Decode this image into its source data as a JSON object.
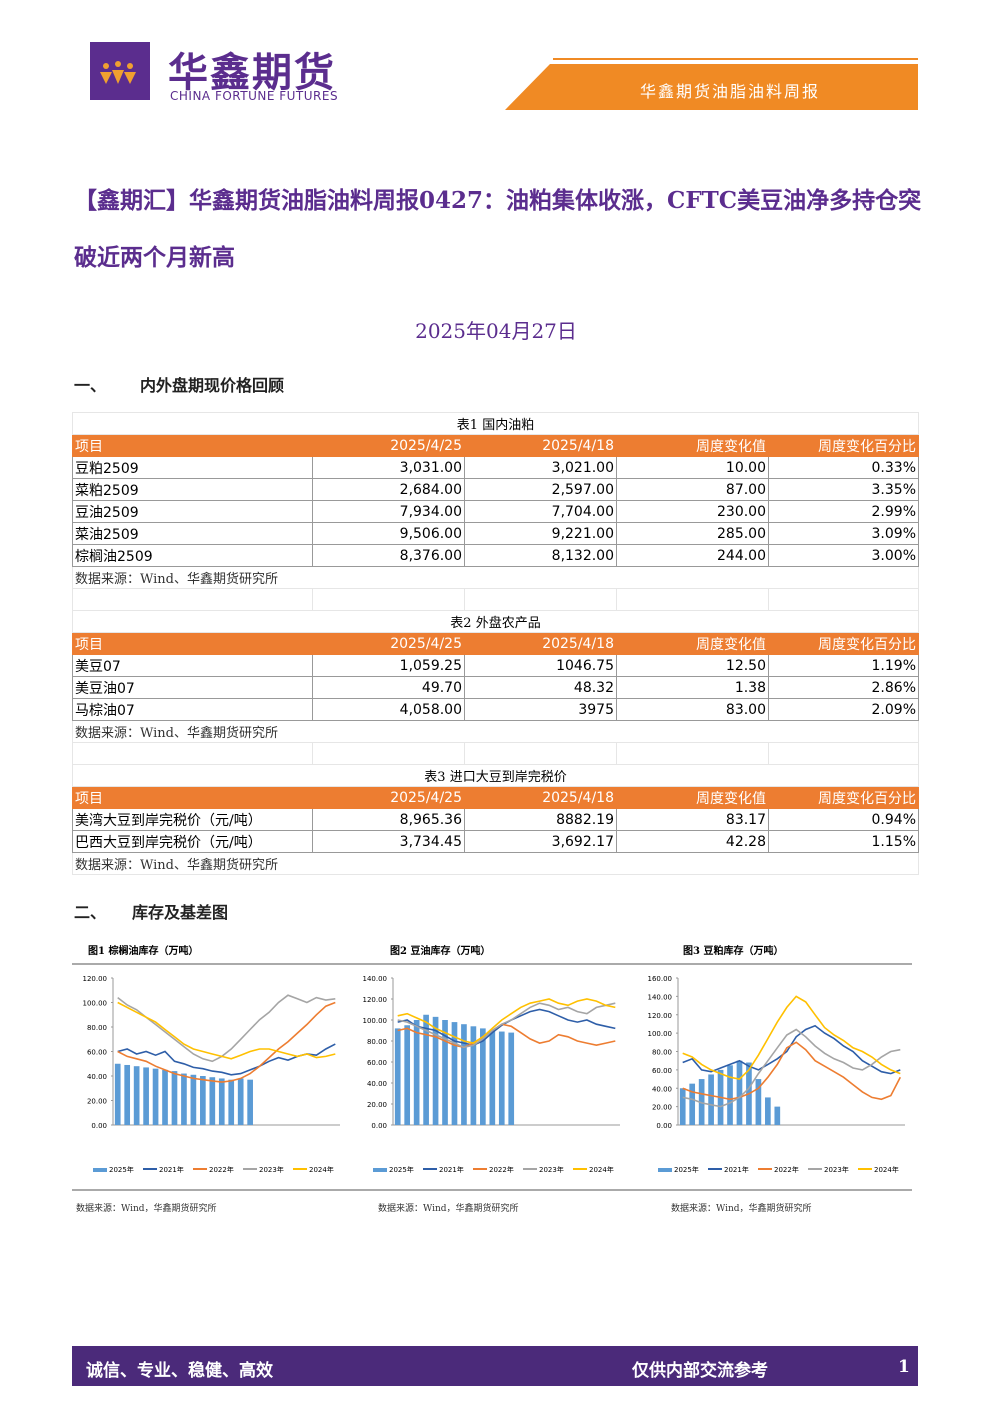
{
  "header": {
    "logo_name": "华鑫期货",
    "logo_subtitle": "CHINA FORTUNE FUTURES",
    "report_name": "华鑫期货油脂油料周报"
  },
  "title": "【鑫期汇】华鑫期货油脂油料周报0427：油粕集体收涨，CFTC美豆油净多持仓突破近两个月新高",
  "date": "2025年04月27日",
  "sections": [
    {
      "number": "一、",
      "title": "内外盘期现价格回顾"
    },
    {
      "number": "二、",
      "title": "库存及基差图"
    }
  ],
  "tables": [
    {
      "caption": "表1 国内油粕",
      "columns": [
        "项目",
        "2025/4/25",
        "2025/4/18",
        "周度变化值",
        "周度变化百分比"
      ],
      "rows": [
        [
          "豆粕2509",
          "3,031.00",
          "3,021.00",
          "10.00",
          "0.33%"
        ],
        [
          "菜粕2509",
          "2,684.00",
          "2,597.00",
          "87.00",
          "3.35%"
        ],
        [
          "豆油2509",
          "7,934.00",
          "7,704.00",
          "230.00",
          "2.99%"
        ],
        [
          "菜油2509",
          "9,506.00",
          "9,221.00",
          "285.00",
          "3.09%"
        ],
        [
          "棕榈油2509",
          "8,376.00",
          "8,132.00",
          "244.00",
          "3.00%"
        ]
      ],
      "source": "数据来源：Wind、华鑫期货研究所"
    },
    {
      "caption": "表2 外盘农产品",
      "columns": [
        "项目",
        "2025/4/25",
        "2025/4/18",
        "周度变化值",
        "周度变化百分比"
      ],
      "rows": [
        [
          "美豆07",
          "1,059.25",
          "1046.75",
          "12.50",
          "1.19%"
        ],
        [
          "美豆油07",
          "49.70",
          "48.32",
          "1.38",
          "2.86%"
        ],
        [
          "马棕油07",
          "4,058.00",
          "3975",
          "83.00",
          "2.09%"
        ]
      ],
      "source": "数据来源：Wind、华鑫期货研究所"
    },
    {
      "caption": "表3 进口大豆到岸完税价",
      "columns": [
        "项目",
        "2025/4/25",
        "2025/4/18",
        "周度变化值",
        "周度变化百分比"
      ],
      "rows": [
        [
          "美湾大豆到岸完税价（元/吨）",
          "8,965.36",
          "8882.19",
          "83.17",
          "0.94%"
        ],
        [
          "巴西大豆到岸完税价（元/吨）",
          "3,734.45",
          "3,692.17",
          "42.28",
          "1.15%"
        ]
      ],
      "source": "数据来源：Wind、华鑫期货研究所"
    }
  ],
  "charts": [
    {
      "type": "line",
      "title": "图1 棕榈油库存（万吨）",
      "ylim": [
        0,
        120
      ],
      "yticks": [
        {
          "value": 0,
          "label": "0.00"
        },
        {
          "value": 20,
          "label": "20.00"
        },
        {
          "value": 40,
          "label": "40.00"
        },
        {
          "value": 60,
          "label": "60.00"
        },
        {
          "value": 80,
          "label": "80.00"
        },
        {
          "value": 100,
          "label": "100.00"
        },
        {
          "value": 120,
          "label": "120.00"
        }
      ],
      "series": [
        {
          "name": "2025年",
          "color": "#5b9bd5",
          "kind": "bar",
          "values": [
            50,
            49,
            48,
            47,
            46,
            45,
            44,
            42,
            41,
            40,
            39,
            38,
            37,
            38,
            37
          ]
        },
        {
          "name": "2021年",
          "color": "#2e5ea8",
          "kind": "line",
          "values": [
            60,
            62,
            58,
            60,
            57,
            60,
            52,
            50,
            47,
            46,
            44,
            43,
            41,
            42,
            45,
            48,
            52,
            55,
            53,
            56,
            58,
            57,
            62,
            66
          ]
        },
        {
          "name": "2022年",
          "color": "#ed7d31",
          "kind": "line",
          "values": [
            60,
            56,
            54,
            52,
            48,
            45,
            42,
            40,
            38,
            37,
            36,
            35,
            36,
            38,
            42,
            48,
            55,
            62,
            68,
            75,
            82,
            90,
            97,
            100
          ]
        },
        {
          "name": "2023年",
          "color": "#a5a5a5",
          "kind": "line",
          "values": [
            104,
            98,
            94,
            88,
            82,
            76,
            70,
            64,
            58,
            54,
            52,
            56,
            62,
            70,
            78,
            86,
            92,
            100,
            106,
            103,
            100,
            104,
            102,
            103
          ]
        },
        {
          "name": "2024年",
          "color": "#ffc000",
          "kind": "line",
          "values": [
            100,
            96,
            92,
            88,
            84,
            78,
            72,
            66,
            62,
            60,
            58,
            56,
            54,
            57,
            60,
            62,
            62,
            60,
            58,
            56,
            58,
            55,
            56,
            58
          ]
        }
      ],
      "source": "数据来源：Wind，华鑫期货研究所"
    },
    {
      "type": "line",
      "title": "图2 豆油库存（万吨）",
      "ylim": [
        0,
        140
      ],
      "yticks": [
        {
          "value": 0,
          "label": "0.00"
        },
        {
          "value": 20,
          "label": "20.00"
        },
        {
          "value": 40,
          "label": "40.00"
        },
        {
          "value": 60,
          "label": "60.00"
        },
        {
          "value": 80,
          "label": "80.00"
        },
        {
          "value": 100,
          "label": "100.00"
        },
        {
          "value": 120,
          "label": "120.00"
        },
        {
          "value": 140,
          "label": "140.00"
        }
      ],
      "series": [
        {
          "name": "2025年",
          "color": "#5b9bd5",
          "kind": "bar",
          "values": [
            92,
            95,
            100,
            105,
            103,
            100,
            98,
            96,
            94,
            92,
            90,
            89,
            88
          ]
        },
        {
          "name": "2021年",
          "color": "#2e5ea8",
          "kind": "line",
          "values": [
            98,
            100,
            94,
            92,
            90,
            85,
            80,
            78,
            76,
            80,
            88,
            95,
            100,
            104,
            108,
            110,
            108,
            104,
            100,
            98,
            100,
            96,
            94,
            92
          ]
        },
        {
          "name": "2022年",
          "color": "#ed7d31",
          "kind": "line",
          "values": [
            90,
            92,
            88,
            86,
            84,
            80,
            76,
            74,
            78,
            84,
            90,
            96,
            94,
            88,
            82,
            78,
            80,
            86,
            84,
            80,
            78,
            76,
            78,
            80
          ]
        },
        {
          "name": "2023年",
          "color": "#a5a5a5",
          "kind": "line",
          "values": [
            100,
            98,
            94,
            90,
            86,
            82,
            78,
            74,
            76,
            82,
            90,
            96,
            100,
            106,
            112,
            116,
            114,
            110,
            112,
            108,
            106,
            112,
            114,
            116
          ]
        },
        {
          "name": "2024年",
          "color": "#ffc000",
          "kind": "line",
          "values": [
            104,
            106,
            102,
            98,
            92,
            88,
            84,
            80,
            78,
            84,
            92,
            100,
            106,
            112,
            116,
            118,
            120,
            116,
            114,
            118,
            120,
            118,
            114,
            112
          ]
        }
      ],
      "source": "数据来源：Wind，华鑫期货研究所"
    },
    {
      "type": "line",
      "title": "图3 豆粕库存（万吨）",
      "ylim": [
        0,
        160
      ],
      "yticks": [
        {
          "value": 0,
          "label": "0.00"
        },
        {
          "value": 20,
          "label": "20.00"
        },
        {
          "value": 40,
          "label": "40.00"
        },
        {
          "value": 60,
          "label": "60.00"
        },
        {
          "value": 80,
          "label": "80.00"
        },
        {
          "value": 100,
          "label": "100.00"
        },
        {
          "value": 120,
          "label": "120.00"
        },
        {
          "value": 140,
          "label": "140.00"
        },
        {
          "value": 160,
          "label": "160.00"
        }
      ],
      "series": [
        {
          "name": "2025年",
          "color": "#5b9bd5",
          "kind": "bar",
          "values": [
            40,
            45,
            50,
            55,
            60,
            65,
            70,
            68,
            50,
            30,
            20
          ]
        },
        {
          "name": "2021年",
          "color": "#2e5ea8",
          "kind": "line",
          "values": [
            68,
            72,
            60,
            58,
            62,
            66,
            70,
            64,
            60,
            66,
            72,
            80,
            96,
            104,
            108,
            100,
            94,
            86,
            80,
            70,
            64,
            58,
            56,
            60
          ]
        },
        {
          "name": "2022年",
          "color": "#ed7d31",
          "kind": "line",
          "values": [
            40,
            36,
            34,
            32,
            30,
            28,
            30,
            34,
            40,
            52,
            66,
            84,
            90,
            82,
            70,
            64,
            58,
            52,
            44,
            36,
            30,
            28,
            32,
            52
          ]
        },
        {
          "name": "2023年",
          "color": "#a5a5a5",
          "kind": "line",
          "values": [
            30,
            28,
            24,
            22,
            20,
            24,
            30,
            40,
            56,
            70,
            84,
            98,
            104,
            96,
            86,
            78,
            72,
            68,
            62,
            60,
            66,
            74,
            80,
            82
          ]
        },
        {
          "name": "2024年",
          "color": "#ffc000",
          "kind": "line",
          "values": [
            78,
            74,
            66,
            60,
            56,
            52,
            50,
            60,
            76,
            94,
            112,
            128,
            140,
            134,
            120,
            106,
            98,
            92,
            84,
            80,
            74,
            66,
            60,
            56
          ]
        }
      ],
      "source": "数据来源：Wind，华鑫期货研究所"
    }
  ],
  "footer": {
    "slogan": "诚信、专业、稳健、高效",
    "notice": "仅供内部交流参考",
    "page": "1"
  }
}
